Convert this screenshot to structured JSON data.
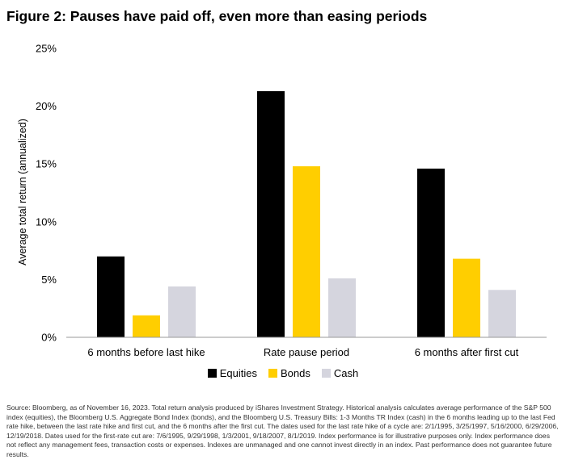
{
  "figure": {
    "title": "Figure 2: Pauses have paid off, even more than easing periods",
    "source": "Source: Bloomberg, as of November 16, 2023. Total return analysis produced by iShares Investment Strategy. Historical analysis calculates average performance of the S&P 500 index (equities), the Bloomberg U.S. Aggregate Bond Index (bonds), and the Bloomberg U.S. Treasury Bills: 1-3 Months TR Index (cash) in the 6 months leading up to the last Fed rate hike, between the last rate hike and first cut, and the 6 months after the first cut. The dates used for the last rate hike of a cycle are: 2/1/1995, 3/25/1997, 5/16/2000, 6/29/2006, 12/19/2018. Dates used for the first-rate cut are: 7/6/1995, 9/29/1998, 1/3/2001, 9/18/2007, 8/1/2019. Index performance is for illustrative purposes only. Index performance does not reflect any management fees, transaction costs or expenses. Indexes are unmanaged and one cannot invest directly in an index. Past performance does not guarantee future results."
  },
  "chart_data": {
    "type": "bar",
    "title": "Figure 2: Pauses have paid off, even more than easing periods",
    "xlabel": "",
    "ylabel": "Average total return (annualized)",
    "categories": [
      "6 months before last hike",
      "Rate pause period",
      "6 months after first cut"
    ],
    "series": [
      {
        "name": "Equities",
        "color": "#000000",
        "values": [
          7.0,
          21.3,
          14.6
        ]
      },
      {
        "name": "Bonds",
        "color": "#ffce00",
        "values": [
          1.9,
          14.8,
          6.8
        ]
      },
      {
        "name": "Cash",
        "color": "#d5d5de",
        "values": [
          4.4,
          5.1,
          4.1
        ]
      }
    ],
    "ylim": [
      0,
      25
    ],
    "yticks": [
      0,
      5,
      10,
      15,
      20,
      25
    ],
    "ytick_labels": [
      "0%",
      "5%",
      "10%",
      "15%",
      "20%",
      "25%"
    ],
    "unit": "%",
    "grid": false,
    "legend_position": "bottom-center"
  }
}
